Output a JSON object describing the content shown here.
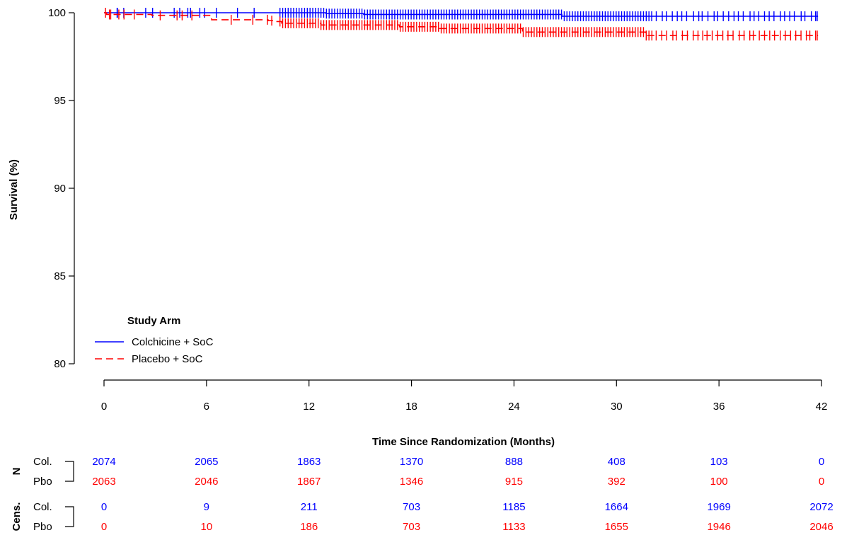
{
  "chart_data": {
    "type": "line",
    "subtype": "kaplan-meier",
    "title": "",
    "xlabel": "Time Since Randomization (Months)",
    "ylabel": "Survival (%)",
    "xlim": [
      0,
      42
    ],
    "ylim": [
      80,
      100
    ],
    "xticks": [
      0,
      6,
      12,
      18,
      24,
      30,
      36,
      42
    ],
    "yticks": [
      80,
      85,
      90,
      95,
      100
    ],
    "grid": false,
    "censoring_marks": true,
    "legend": {
      "title": "Study Arm",
      "position": "bottom-left",
      "entries": [
        "Colchicine + SoC",
        "Placebo + SoC"
      ]
    },
    "series": [
      {
        "name": "Colchicine + SoC",
        "color": "#0000ff",
        "line_style": "solid",
        "x": [
          0,
          10.3,
          13.0,
          15.2,
          20.0,
          26.8,
          32.0,
          41.8
        ],
        "y": [
          100,
          100,
          99.95,
          99.9,
          99.9,
          99.8,
          99.8,
          99.8
        ]
      },
      {
        "name": "Placebo + SoC",
        "color": "#ff0000",
        "line_style": "dashed",
        "x": [
          0,
          0.15,
          2.8,
          6.3,
          9.6,
          10.0,
          10.4,
          12.7,
          17.3,
          19.6,
          24.5,
          31.7,
          41.8
        ],
        "y": [
          100,
          99.9,
          99.85,
          99.6,
          99.55,
          99.5,
          99.4,
          99.3,
          99.2,
          99.1,
          98.9,
          98.7,
          98.7
        ]
      }
    ]
  },
  "risk_table": {
    "times": [
      0,
      6,
      12,
      18,
      24,
      30,
      36,
      42
    ],
    "groups": [
      {
        "label": "N",
        "rows": [
          {
            "label": "Col.",
            "color": "#0000ff",
            "values": [
              "2074",
              "2065",
              "1863",
              "1370",
              "888",
              "408",
              "103",
              "0"
            ]
          },
          {
            "label": "Pbo",
            "color": "#ff0000",
            "values": [
              "2063",
              "2046",
              "1867",
              "1346",
              "915",
              "392",
              "100",
              "0"
            ]
          }
        ]
      },
      {
        "label": "Cens.",
        "rows": [
          {
            "label": "Col.",
            "color": "#0000ff",
            "values": [
              "0",
              "9",
              "211",
              "703",
              "1185",
              "1664",
              "1969",
              "2072"
            ]
          },
          {
            "label": "Pbo",
            "color": "#ff0000",
            "values": [
              "0",
              "10",
              "186",
              "703",
              "1133",
              "1655",
              "1946",
              "2046"
            ]
          }
        ]
      }
    ]
  }
}
